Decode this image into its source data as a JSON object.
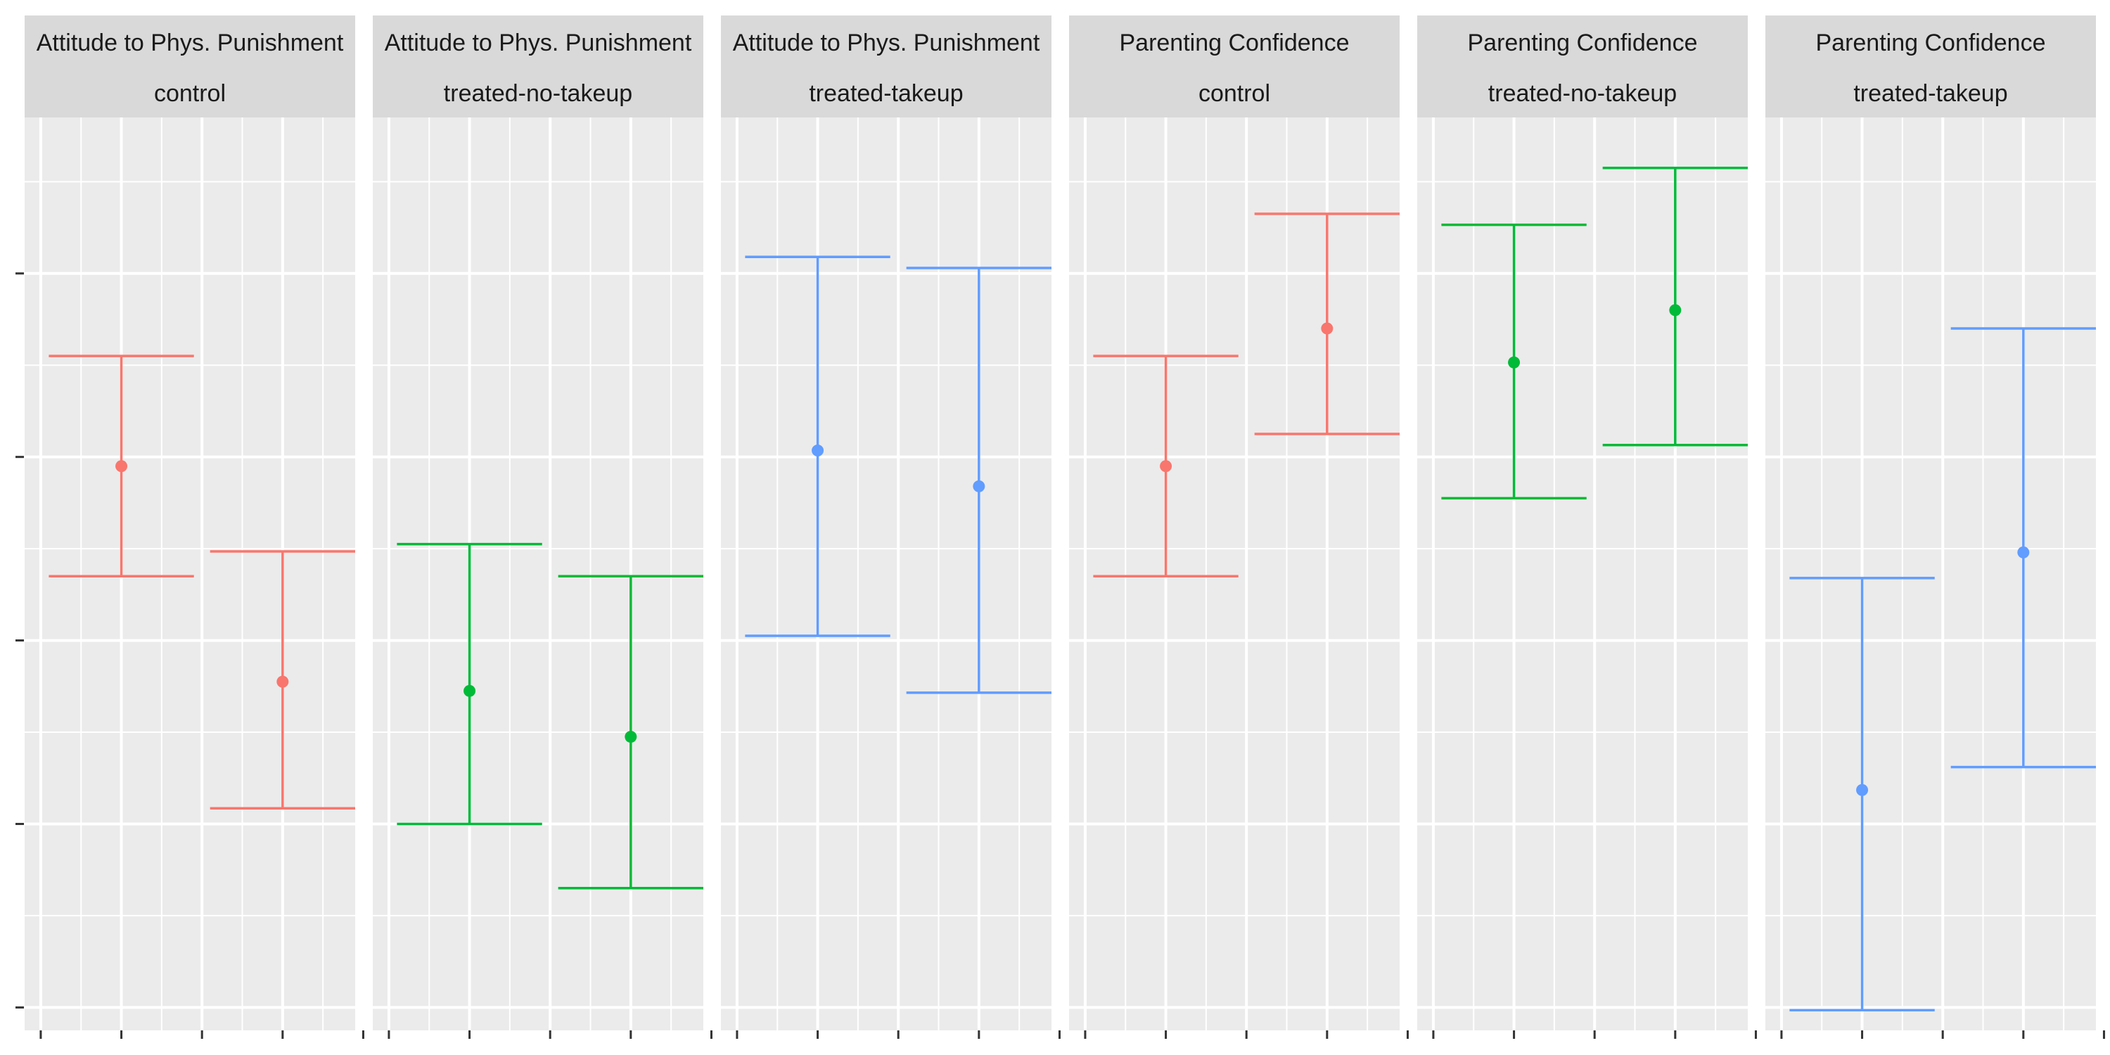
{
  "chart_data": {
    "type": "errorbar",
    "title": "",
    "xlabel": "",
    "ylabel": "",
    "ylim": [
      0.0,
      1.0
    ],
    "grid": true,
    "legend": "none",
    "colors": {
      "control": "#F8766D",
      "treated-no-takeup": "#00BA38",
      "treated-takeup": "#619CFF"
    },
    "panels": [
      {
        "facet_row1": "Attitude to Phys. Punishment",
        "facet_row2": "control",
        "group": "control",
        "points": [
          {
            "x": 1,
            "y": 0.59,
            "ymin": 0.47,
            "ymax": 0.71
          },
          {
            "x": 2,
            "y": 0.355,
            "ymin": 0.217,
            "ymax": 0.497
          }
        ]
      },
      {
        "facet_row1": "Attitude to Phys. Punishment",
        "facet_row2": "treated-no-takeup",
        "group": "treated-no-takeup",
        "points": [
          {
            "x": 1,
            "y": 0.345,
            "ymin": 0.2,
            "ymax": 0.505
          },
          {
            "x": 2,
            "y": 0.295,
            "ymin": 0.13,
            "ymax": 0.47
          }
        ]
      },
      {
        "facet_row1": "Attitude to Phys. Punishment",
        "facet_row2": "treated-takeup",
        "group": "treated-takeup",
        "points": [
          {
            "x": 1,
            "y": 0.607,
            "ymin": 0.405,
            "ymax": 0.818
          },
          {
            "x": 2,
            "y": 0.568,
            "ymin": 0.343,
            "ymax": 0.806
          }
        ]
      },
      {
        "facet_row1": "Parenting Confidence",
        "facet_row2": "control",
        "group": "control",
        "points": [
          {
            "x": 1,
            "y": 0.59,
            "ymin": 0.47,
            "ymax": 0.71
          },
          {
            "x": 2,
            "y": 0.74,
            "ymin": 0.625,
            "ymax": 0.865
          }
        ]
      },
      {
        "facet_row1": "Parenting Confidence",
        "facet_row2": "treated-no-takeup",
        "group": "treated-no-takeup",
        "points": [
          {
            "x": 1,
            "y": 0.703,
            "ymin": 0.555,
            "ymax": 0.853
          },
          {
            "x": 2,
            "y": 0.76,
            "ymin": 0.613,
            "ymax": 0.915
          }
        ]
      },
      {
        "facet_row1": "Parenting Confidence",
        "facet_row2": "treated-takeup",
        "group": "treated-takeup",
        "points": [
          {
            "x": 1,
            "y": 0.237,
            "ymin": -0.003,
            "ymax": 0.468
          },
          {
            "x": 2,
            "y": 0.496,
            "ymin": 0.262,
            "ymax": 0.74
          }
        ]
      }
    ]
  }
}
